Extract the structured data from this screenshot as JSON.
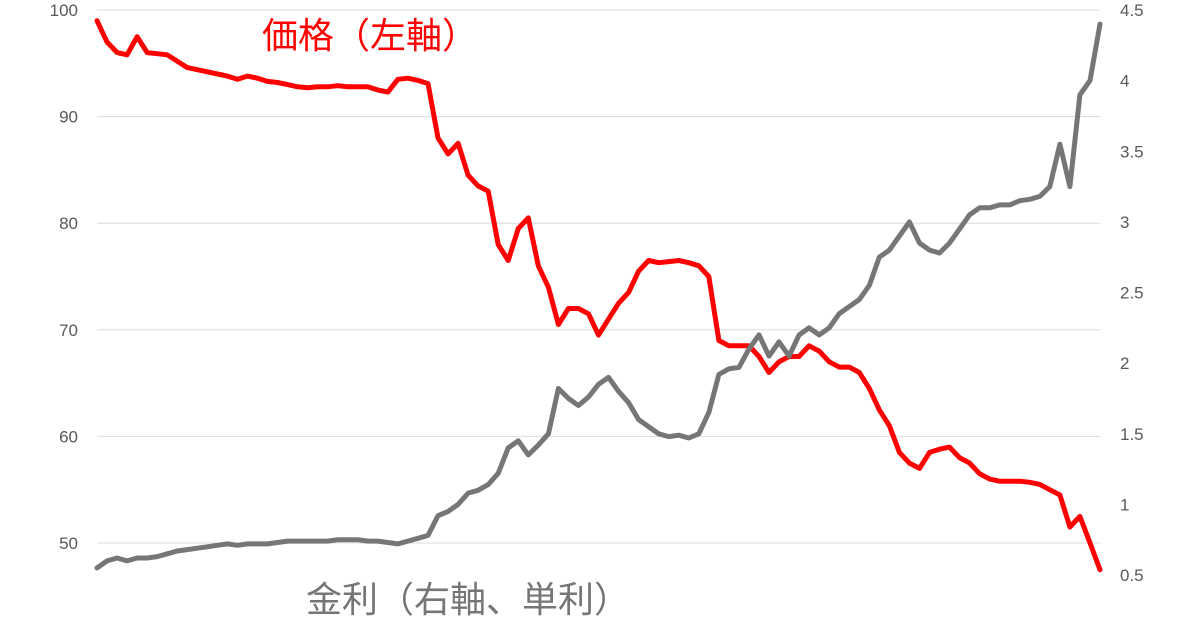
{
  "chart_data": {
    "type": "line",
    "title": "",
    "xlabel": "",
    "y_left": {
      "min": 47,
      "max": 100,
      "ticks": [
        "100",
        "90",
        "80",
        "70",
        "60",
        "50"
      ]
    },
    "y_right": {
      "min": 0.5,
      "max": 4.5,
      "ticks": [
        "4.5",
        "4",
        "3.5",
        "3",
        "2.5",
        "2",
        "1.5",
        "1",
        "0.5"
      ]
    },
    "grid": true,
    "x_points": 101,
    "series": [
      {
        "name": "価格（左軸）",
        "axis": "left",
        "color": "#ff0000",
        "values": [
          99.0,
          97.0,
          96.0,
          95.8,
          97.5,
          96.0,
          95.9,
          95.8,
          95.2,
          94.6,
          94.4,
          94.2,
          94.0,
          93.8,
          93.5,
          93.8,
          93.6,
          93.3,
          93.2,
          93.0,
          92.8,
          92.7,
          92.8,
          92.8,
          92.9,
          92.8,
          92.8,
          92.8,
          92.5,
          92.3,
          93.5,
          93.6,
          93.4,
          93.1,
          88.0,
          86.5,
          87.5,
          84.5,
          83.5,
          83.0,
          78.0,
          76.5,
          79.5,
          80.5,
          76.0,
          74.0,
          70.5,
          72.0,
          72.0,
          71.5,
          69.5,
          71.0,
          72.5,
          73.5,
          75.5,
          76.5,
          76.3,
          76.4,
          76.5,
          76.3,
          76.0,
          75.0,
          69.0,
          68.5,
          68.5,
          68.5,
          67.5,
          66.0,
          67.0,
          67.5,
          67.5,
          68.5,
          68.0,
          67.0,
          66.5,
          66.5,
          66.0,
          64.5,
          62.5,
          61.0,
          58.5,
          57.5,
          57.0,
          58.5,
          58.8,
          59.0,
          58.0,
          57.5,
          56.5,
          56.0,
          55.8,
          55.8,
          55.8,
          55.7,
          55.5,
          55.0,
          54.5,
          51.5,
          52.5,
          50.0,
          47.5
        ]
      },
      {
        "name": "金利（右軸、単利）",
        "axis": "right",
        "color": "#767676",
        "values": [
          0.55,
          0.6,
          0.62,
          0.6,
          0.62,
          0.62,
          0.63,
          0.65,
          0.67,
          0.68,
          0.69,
          0.7,
          0.71,
          0.72,
          0.71,
          0.72,
          0.72,
          0.72,
          0.73,
          0.74,
          0.74,
          0.74,
          0.74,
          0.74,
          0.75,
          0.75,
          0.75,
          0.74,
          0.74,
          0.73,
          0.72,
          0.74,
          0.76,
          0.78,
          0.92,
          0.95,
          1.0,
          1.08,
          1.1,
          1.14,
          1.22,
          1.4,
          1.45,
          1.35,
          1.42,
          1.5,
          1.82,
          1.75,
          1.7,
          1.76,
          1.85,
          1.9,
          1.8,
          1.72,
          1.6,
          1.55,
          1.5,
          1.48,
          1.49,
          1.47,
          1.5,
          1.65,
          1.92,
          1.96,
          1.97,
          2.1,
          2.2,
          2.05,
          2.15,
          2.05,
          2.2,
          2.25,
          2.2,
          2.25,
          2.35,
          2.4,
          2.45,
          2.55,
          2.75,
          2.8,
          2.9,
          3.0,
          2.85,
          2.8,
          2.78,
          2.85,
          2.95,
          3.05,
          3.1,
          3.1,
          3.12,
          3.12,
          3.15,
          3.16,
          3.18,
          3.25,
          3.55,
          3.25,
          3.9,
          4.0,
          4.4
        ]
      }
    ]
  }
}
